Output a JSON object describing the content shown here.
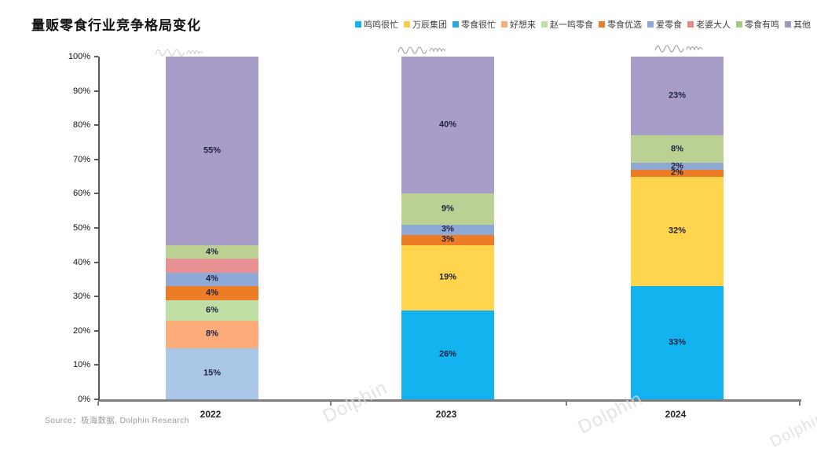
{
  "title": "量贩零食行业竞争格局变化",
  "source": "Source：极海数据, Dolphin Research",
  "watermark_text": "Dolphin",
  "axis": {
    "y_ticks": [
      "100%",
      "90%",
      "80%",
      "70%",
      "60%",
      "50%",
      "40%",
      "30%",
      "20%",
      "10%",
      "0%"
    ]
  },
  "chart_data": {
    "type": "bar",
    "stacked": true,
    "title": "量贩零食行业竞争格局变化",
    "categories": [
      "2022",
      "2023",
      "2024"
    ],
    "xlabel": "",
    "ylabel": "",
    "ylim": [
      0,
      100
    ],
    "y_tick_step": 10,
    "grid": false,
    "legend_position": "top-right",
    "series": [
      {
        "name": "鸣鸣很忙",
        "color": "#12B3EE",
        "legend_color": "#12B3EE",
        "values": [
          0,
          26,
          33
        ],
        "labels": [
          "",
          "26%",
          "33%"
        ]
      },
      {
        "name": "万辰集团",
        "color": "#FFD54D",
        "legend_color": "#F5D04E",
        "values": [
          0,
          19,
          32
        ],
        "labels": [
          "",
          "19%",
          "32%"
        ]
      },
      {
        "name": "零食很忙",
        "color": "#ABC7E8",
        "legend_color": "#2EA8DC",
        "values": [
          15,
          0,
          0
        ],
        "labels": [
          "15%",
          "",
          ""
        ]
      },
      {
        "name": "好想来",
        "color": "#FBAC79",
        "legend_color": "#FBAC79",
        "values": [
          8,
          0,
          0
        ],
        "labels": [
          "8%",
          "",
          ""
        ]
      },
      {
        "name": "赵一鸣零食",
        "color": "#C0DFA5",
        "legend_color": "#C0DFA5",
        "values": [
          6,
          0,
          0
        ],
        "labels": [
          "6%",
          "",
          ""
        ]
      },
      {
        "name": "零食优选",
        "color": "#EC7C25",
        "legend_color": "#EC7C25",
        "values": [
          4,
          3,
          2
        ],
        "labels": [
          "4%",
          "3%",
          "2%"
        ]
      },
      {
        "name": "爱零食",
        "color": "#8FA9D7",
        "legend_color": "#8FA9D7",
        "values": [
          4,
          3,
          2
        ],
        "labels": [
          "4%",
          "3%",
          "2%"
        ]
      },
      {
        "name": "老婆大人",
        "color": "#E79192",
        "legend_color": "#E28C8C",
        "values": [
          4,
          0,
          0
        ],
        "labels": [
          "",
          "",
          ""
        ]
      },
      {
        "name": "零食有鸣",
        "color": "#BBD193",
        "legend_color": "#A9C77E",
        "values": [
          4,
          9,
          8
        ],
        "labels": [
          "4%",
          "9%",
          "8%"
        ]
      },
      {
        "name": "其他",
        "color": "#A89CC8",
        "legend_color": "#A095BE",
        "values": [
          55,
          40,
          23
        ],
        "labels": [
          "55%",
          "40%",
          "23%"
        ]
      }
    ]
  }
}
